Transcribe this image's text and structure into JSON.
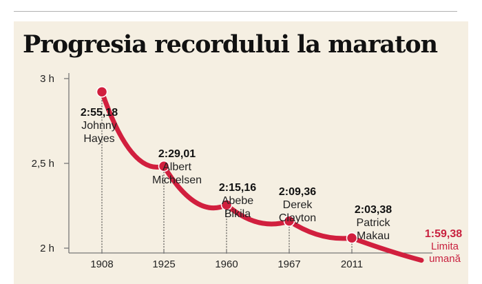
{
  "chart_data": {
    "type": "line",
    "title": "Progresia recordului la maraton",
    "y_ticks": [
      {
        "label": "3 h",
        "value": 180
      },
      {
        "label": "2,5 h",
        "value": 150
      },
      {
        "label": "2 h",
        "value": 120
      }
    ],
    "ylim": [
      120,
      180
    ],
    "points": [
      {
        "year": "1908",
        "time": "2:55,18",
        "minutes": 175.3,
        "name": [
          "Johnny",
          "Hayes"
        ]
      },
      {
        "year": "1925",
        "time": "2:29,01",
        "minutes": 149.0,
        "name": [
          "Albert",
          "Michelsen"
        ]
      },
      {
        "year": "1960",
        "time": "2:15,16",
        "minutes": 135.3,
        "name": [
          "Abebe",
          "Bikila"
        ]
      },
      {
        "year": "1967",
        "time": "2:09,36",
        "minutes": 129.6,
        "name": [
          "Derek",
          "Clayton"
        ]
      },
      {
        "year": "2011",
        "time": "2:03,38",
        "minutes": 123.6,
        "name": [
          "Patrick",
          "Makau"
        ]
      }
    ],
    "limit": {
      "time": "1:59,38",
      "minutes": 119.6,
      "label": [
        "Limita",
        "umană"
      ]
    },
    "colors": {
      "line": "#d11f3e",
      "limit_text": "#c8213f",
      "axis": "#777777",
      "background": "#f5efe2"
    }
  }
}
